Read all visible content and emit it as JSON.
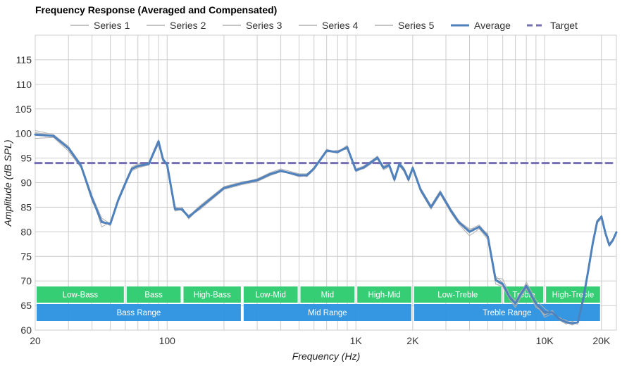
{
  "chart_data": {
    "type": "line",
    "title": "Frequency Response (Averaged and Compensated)",
    "xlabel": "Frequency (Hz)",
    "ylabel": "Amplitude (dB SPL)",
    "x_scale": "log",
    "xlim": [
      20,
      24000
    ],
    "ylim": [
      60,
      120
    ],
    "grid": true,
    "legend_position": "top",
    "x_tick_labels": [
      {
        "value": 20,
        "label": "20"
      },
      {
        "value": 100,
        "label": "100"
      },
      {
        "value": 1000,
        "label": "1K"
      },
      {
        "value": 2000,
        "label": "2K"
      },
      {
        "value": 10000,
        "label": "10K"
      },
      {
        "value": 20000,
        "label": "20K"
      }
    ],
    "y_ticks": [
      60,
      65,
      70,
      75,
      80,
      85,
      90,
      95,
      100,
      105,
      110,
      115
    ],
    "x_gridlines": [
      20,
      30,
      40,
      50,
      60,
      70,
      80,
      90,
      100,
      200,
      300,
      400,
      500,
      600,
      700,
      800,
      900,
      1000,
      2000,
      3000,
      4000,
      5000,
      6000,
      7000,
      8000,
      9000,
      10000,
      20000
    ],
    "colors": {
      "series": "#b0b0b0",
      "average": "#4f81bd",
      "target": "#7570b3",
      "band_top": "#2ecc71",
      "band_bottom": "#2e94e0",
      "grid": "#cccccc"
    },
    "series": [
      {
        "name": "Series 1",
        "x": [
          20,
          25,
          30,
          35,
          40,
          45,
          50,
          55,
          60,
          65,
          70,
          80,
          85,
          90,
          95,
          100,
          110,
          120,
          130,
          150,
          200,
          250,
          300,
          350,
          400,
          500,
          550,
          600,
          700,
          800,
          900,
          1000,
          1100,
          1200,
          1300,
          1400,
          1500,
          1600,
          1700,
          1800,
          1900,
          2000,
          2200,
          2500,
          2800,
          3200,
          3500,
          4000,
          4500,
          5000,
          5500,
          6000,
          6500,
          7000,
          7500,
          8000,
          9000,
          10000,
          11000,
          12000,
          13000,
          14000,
          15000,
          16000,
          17000,
          18000,
          19000,
          20000,
          21000,
          22000,
          23000,
          24000
        ],
        "y": [
          100.2,
          99.6,
          97.2,
          93.6,
          87,
          81,
          82,
          86.8,
          90.2,
          93.2,
          93.8,
          94.2,
          96.6,
          98.8,
          95.2,
          93.2,
          84.4,
          84.8,
          83.2,
          85.4,
          89.2,
          90.2,
          90.6,
          91.8,
          92.4,
          91.2,
          91.4,
          93.2,
          96.6,
          96.0,
          97.4,
          92.8,
          93.4,
          94.4,
          95.4,
          93.4,
          94.0,
          91.0,
          94.2,
          93.0,
          91.0,
          93.4,
          89.0,
          85.4,
          88.4,
          84.6,
          82.4,
          80.0,
          81.2,
          79.0,
          70.0,
          69.0,
          67.0,
          66.0,
          68.0,
          69.0,
          65.0,
          63.0,
          64.0,
          62.0,
          61.6,
          61.0,
          61.6,
          66.0,
          72.0,
          78.0,
          82.0,
          83.4,
          80.0,
          77.6,
          78.6,
          80.2
        ]
      },
      {
        "name": "Series 2",
        "x": [
          20,
          25,
          30,
          35,
          40,
          45,
          50,
          55,
          60,
          65,
          70,
          80,
          85,
          90,
          95,
          100,
          110,
          120,
          130,
          150,
          200,
          250,
          300,
          350,
          400,
          500,
          550,
          600,
          700,
          800,
          900,
          1000,
          1100,
          1200,
          1300,
          1400,
          1500,
          1600,
          1700,
          1800,
          1900,
          2000,
          2200,
          2500,
          2800,
          3200,
          3500,
          4000,
          4500,
          5000,
          5500,
          6000,
          6500,
          7000,
          7500,
          8000,
          9000,
          10000,
          11000,
          12000,
          13000,
          14000,
          15000,
          16000,
          17000,
          18000,
          19000,
          20000,
          21000,
          22000,
          23000,
          24000
        ],
        "y": [
          99.6,
          99.4,
          96.8,
          93.2,
          86.6,
          81.8,
          81.8,
          86.4,
          89.8,
          92.8,
          93.4,
          93.8,
          96.2,
          98.2,
          94.6,
          93.4,
          84.8,
          85.0,
          82.6,
          85.0,
          88.8,
          89.8,
          90.4,
          91.6,
          92.6,
          91.4,
          91.6,
          92.8,
          96.4,
          96.4,
          97.2,
          92.4,
          93.0,
          94.0,
          95.0,
          93.0,
          93.6,
          90.6,
          93.8,
          92.6,
          90.6,
          93.0,
          88.6,
          85.0,
          88.0,
          84.2,
          82.0,
          80.4,
          81.4,
          79.4,
          71.0,
          69.6,
          66.6,
          65.0,
          67.4,
          69.8,
          66.2,
          64.4,
          63.2,
          62.6,
          61.4,
          61.4,
          61.2,
          66.6,
          72.4,
          77.8,
          82.2,
          83.0,
          79.6,
          77.2,
          78.2,
          79.8
        ]
      },
      {
        "name": "Series 3",
        "x": [
          20,
          25,
          30,
          35,
          40,
          45,
          50,
          55,
          60,
          65,
          70,
          80,
          85,
          90,
          95,
          100,
          110,
          120,
          130,
          150,
          200,
          250,
          300,
          350,
          400,
          500,
          550,
          600,
          700,
          800,
          900,
          1000,
          1100,
          1200,
          1300,
          1400,
          1500,
          1600,
          1700,
          1800,
          1900,
          2000,
          2200,
          2500,
          2800,
          3200,
          3500,
          4000,
          4500,
          5000,
          5500,
          6000,
          6500,
          7000,
          7500,
          8000,
          9000,
          10000,
          11000,
          12000,
          13000,
          14000,
          15000,
          16000,
          17000,
          18000,
          19000,
          20000,
          21000,
          22000,
          23000,
          24000
        ],
        "y": [
          99.0,
          99.2,
          96.4,
          93.0,
          86.2,
          82.4,
          81.2,
          86.0,
          89.4,
          92.6,
          93.2,
          93.6,
          95.8,
          97.8,
          94.2,
          94.2,
          85.2,
          84.2,
          83.0,
          84.6,
          88.6,
          89.6,
          90.2,
          91.4,
          92.2,
          91.6,
          91.2,
          92.6,
          96.2,
          96.6,
          96.8,
          92.6,
          92.8,
          93.8,
          94.8,
          92.6,
          93.2,
          90.2,
          93.4,
          92.2,
          90.2,
          92.6,
          88.2,
          84.6,
          87.6,
          83.8,
          81.6,
          79.2,
          80.6,
          78.4,
          69.4,
          68.8,
          66.2,
          64.6,
          66.8,
          68.4,
          64.6,
          63.6,
          63.8,
          62.0,
          61.2,
          61.8,
          61.4,
          66.2,
          71.8,
          77.4,
          81.8,
          82.6,
          79.2,
          77.0,
          78.0,
          79.6
        ]
      },
      {
        "name": "Series 4",
        "x": [
          20,
          25,
          30,
          35,
          40,
          45,
          50,
          55,
          60,
          65,
          70,
          80,
          85,
          90,
          95,
          100,
          110,
          120,
          130,
          150,
          200,
          250,
          300,
          350,
          400,
          500,
          550,
          600,
          700,
          800,
          900,
          1000,
          1100,
          1200,
          1300,
          1400,
          1500,
          1600,
          1700,
          1800,
          1900,
          2000,
          2200,
          2500,
          2800,
          3200,
          3500,
          4000,
          4500,
          5000,
          5500,
          6000,
          6500,
          7000,
          7500,
          8000,
          9000,
          10000,
          11000,
          12000,
          13000,
          14000,
          15000,
          16000,
          17000,
          18000,
          19000,
          20000,
          21000,
          22000,
          23000,
          24000
        ],
        "y": [
          100.6,
          99.8,
          97.4,
          93.8,
          87.4,
          82.8,
          81.6,
          86.6,
          90.0,
          93.0,
          93.6,
          94.0,
          96.4,
          98.6,
          95.0,
          93.8,
          84.6,
          84.4,
          82.8,
          85.2,
          89.0,
          90.0,
          90.8,
          92.0,
          92.8,
          91.8,
          91.8,
          93.0,
          96.8,
          96.2,
          97.6,
          92.6,
          93.2,
          94.2,
          95.2,
          93.2,
          93.8,
          90.8,
          94.0,
          92.8,
          90.8,
          93.2,
          88.8,
          85.2,
          88.2,
          84.4,
          82.2,
          80.6,
          80.8,
          79.6,
          70.6,
          70.4,
          67.4,
          65.4,
          67.8,
          69.4,
          65.6,
          62.6,
          63.4,
          62.4,
          62.0,
          61.2,
          61.8,
          66.4,
          72.2,
          77.6,
          82.4,
          83.2,
          79.8,
          77.4,
          78.4,
          80.0
        ]
      },
      {
        "name": "Series 5",
        "x": [
          20,
          25,
          30,
          35,
          40,
          45,
          50,
          55,
          60,
          65,
          70,
          80,
          85,
          90,
          95,
          100,
          110,
          120,
          130,
          150,
          200,
          250,
          300,
          350,
          400,
          500,
          550,
          600,
          700,
          800,
          900,
          1000,
          1100,
          1200,
          1300,
          1400,
          1500,
          1600,
          1700,
          1800,
          1900,
          2000,
          2200,
          2500,
          2800,
          3200,
          3500,
          4000,
          4500,
          5000,
          5500,
          6000,
          6500,
          7000,
          7500,
          8000,
          9000,
          10000,
          11000,
          12000,
          13000,
          14000,
          15000,
          16000,
          17000,
          18000,
          19000,
          20000,
          21000,
          22000,
          23000,
          24000
        ],
        "y": [
          99.8,
          99.6,
          97.0,
          93.4,
          86.8,
          82.2,
          81.4,
          86.2,
          89.6,
          92.4,
          93.0,
          93.6,
          96.0,
          98.4,
          94.8,
          93.6,
          84.2,
          84.6,
          83.4,
          84.8,
          88.8,
          89.8,
          90.4,
          91.6,
          92.2,
          91.6,
          91.6,
          92.8,
          96.4,
          96.0,
          97.2,
          92.2,
          93.0,
          94.0,
          95.2,
          92.8,
          93.4,
          90.4,
          93.6,
          92.4,
          90.4,
          92.8,
          88.4,
          84.8,
          87.8,
          84.0,
          81.8,
          79.8,
          81.0,
          78.8,
          70.2,
          69.4,
          66.8,
          65.8,
          67.2,
          68.8,
          65.2,
          63.2,
          63.6,
          62.2,
          61.8,
          61.6,
          61.4,
          66.2,
          72.0,
          77.8,
          82.0,
          83.2,
          79.8,
          77.4,
          78.2,
          79.8
        ]
      },
      {
        "name": "Average",
        "x": [
          20,
          25,
          30,
          35,
          40,
          45,
          50,
          55,
          60,
          65,
          70,
          80,
          85,
          90,
          95,
          100,
          110,
          120,
          130,
          150,
          200,
          250,
          300,
          350,
          400,
          500,
          550,
          600,
          700,
          800,
          900,
          1000,
          1100,
          1200,
          1300,
          1400,
          1500,
          1600,
          1700,
          1800,
          1900,
          2000,
          2200,
          2500,
          2800,
          3200,
          3500,
          4000,
          4500,
          5000,
          5500,
          6000,
          6500,
          7000,
          7500,
          8000,
          9000,
          10000,
          11000,
          12000,
          13000,
          14000,
          15000,
          16000,
          17000,
          18000,
          19000,
          20000,
          21000,
          22000,
          23000,
          24000
        ],
        "y": [
          99.8,
          99.5,
          97.0,
          93.4,
          86.8,
          82.0,
          81.6,
          86.4,
          89.8,
          92.8,
          93.4,
          93.8,
          96.2,
          98.4,
          94.8,
          93.6,
          84.6,
          84.6,
          83.0,
          85.0,
          88.9,
          89.9,
          90.5,
          91.7,
          92.4,
          91.5,
          91.5,
          92.9,
          96.5,
          96.2,
          97.2,
          92.5,
          93.1,
          94.1,
          95.1,
          93.0,
          93.6,
          90.6,
          93.8,
          92.6,
          90.6,
          93.0,
          88.6,
          85.0,
          88.0,
          84.2,
          82.0,
          80.0,
          81.0,
          79.0,
          70.2,
          69.4,
          66.8,
          65.4,
          67.4,
          69.0,
          65.4,
          63.6,
          63.6,
          62.2,
          61.6,
          61.4,
          61.6,
          66.2,
          72.0,
          77.7,
          82.1,
          83.1,
          79.7,
          77.3,
          78.3,
          79.9
        ]
      },
      {
        "name": "Target",
        "x": [
          20,
          24000
        ],
        "y": [
          94,
          94
        ]
      }
    ],
    "bands": [
      {
        "label": "Low-Bass",
        "from": 20,
        "to": 60,
        "row": "top"
      },
      {
        "label": "Bass",
        "from": 60,
        "to": 120,
        "row": "top"
      },
      {
        "label": "High-Bass",
        "from": 120,
        "to": 250,
        "row": "top"
      },
      {
        "label": "Low-Mid",
        "from": 250,
        "to": 500,
        "row": "top"
      },
      {
        "label": "Mid",
        "from": 500,
        "to": 1000,
        "row": "top"
      },
      {
        "label": "High-Mid",
        "from": 1000,
        "to": 2000,
        "row": "top"
      },
      {
        "label": "Low-Treble",
        "from": 2000,
        "to": 6000,
        "row": "top"
      },
      {
        "label": "Treble",
        "from": 6000,
        "to": 10000,
        "row": "top"
      },
      {
        "label": "High-Treble",
        "from": 10000,
        "to": 20000,
        "row": "top"
      },
      {
        "label": "Bass Range",
        "from": 20,
        "to": 250,
        "row": "bottom"
      },
      {
        "label": "Mid Range",
        "from": 250,
        "to": 2000,
        "row": "bottom"
      },
      {
        "label": "Treble Range",
        "from": 2000,
        "to": 20000,
        "row": "bottom"
      }
    ]
  }
}
